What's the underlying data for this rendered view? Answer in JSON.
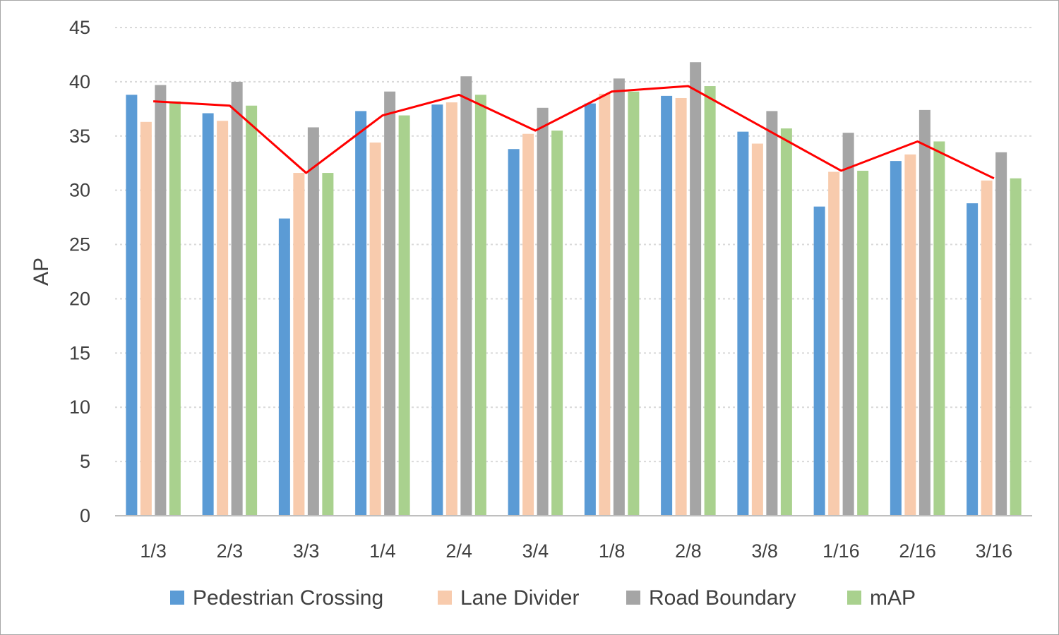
{
  "chart_data": {
    "type": "bar",
    "title": "",
    "xlabel": "",
    "ylabel": "AP",
    "ylim": [
      0,
      45
    ],
    "yticks": [
      0,
      5,
      10,
      15,
      20,
      25,
      30,
      35,
      40,
      45
    ],
    "grid": true,
    "legend_position": "bottom",
    "categories": [
      "1/3",
      "2/3",
      "3/3",
      "1/4",
      "2/4",
      "3/4",
      "1/8",
      "2/8",
      "3/8",
      "1/16",
      "2/16",
      "3/16"
    ],
    "series": [
      {
        "name": "Pedestrian Crossing",
        "color": "#5b9bd5",
        "values": [
          38.8,
          37.1,
          27.4,
          37.3,
          37.9,
          33.8,
          38.0,
          38.7,
          35.4,
          28.5,
          32.7,
          28.8
        ]
      },
      {
        "name": "Lane Divider",
        "color": "#f8cbad",
        "values": [
          36.3,
          36.4,
          31.6,
          34.4,
          38.1,
          35.2,
          38.9,
          38.5,
          34.3,
          31.7,
          33.3,
          30.9
        ]
      },
      {
        "name": "Road Boundary",
        "color": "#a5a5a5",
        "values": [
          39.7,
          40.0,
          35.8,
          39.1,
          40.5,
          37.6,
          40.3,
          41.8,
          37.3,
          35.3,
          37.4,
          33.5
        ]
      },
      {
        "name": "mAP",
        "color": "#a9d18e",
        "values": [
          38.2,
          37.8,
          31.6,
          36.9,
          38.8,
          35.5,
          39.1,
          39.6,
          35.7,
          31.8,
          34.5,
          31.1
        ]
      }
    ],
    "line": {
      "color": "#ff0000",
      "values": [
        38.2,
        37.8,
        31.6,
        36.9,
        38.8,
        35.5,
        39.1,
        39.6,
        35.7,
        31.8,
        34.5,
        31.1
      ]
    },
    "gridline_color": "#d9d9d9",
    "axis_color": "#bfbfbf"
  }
}
